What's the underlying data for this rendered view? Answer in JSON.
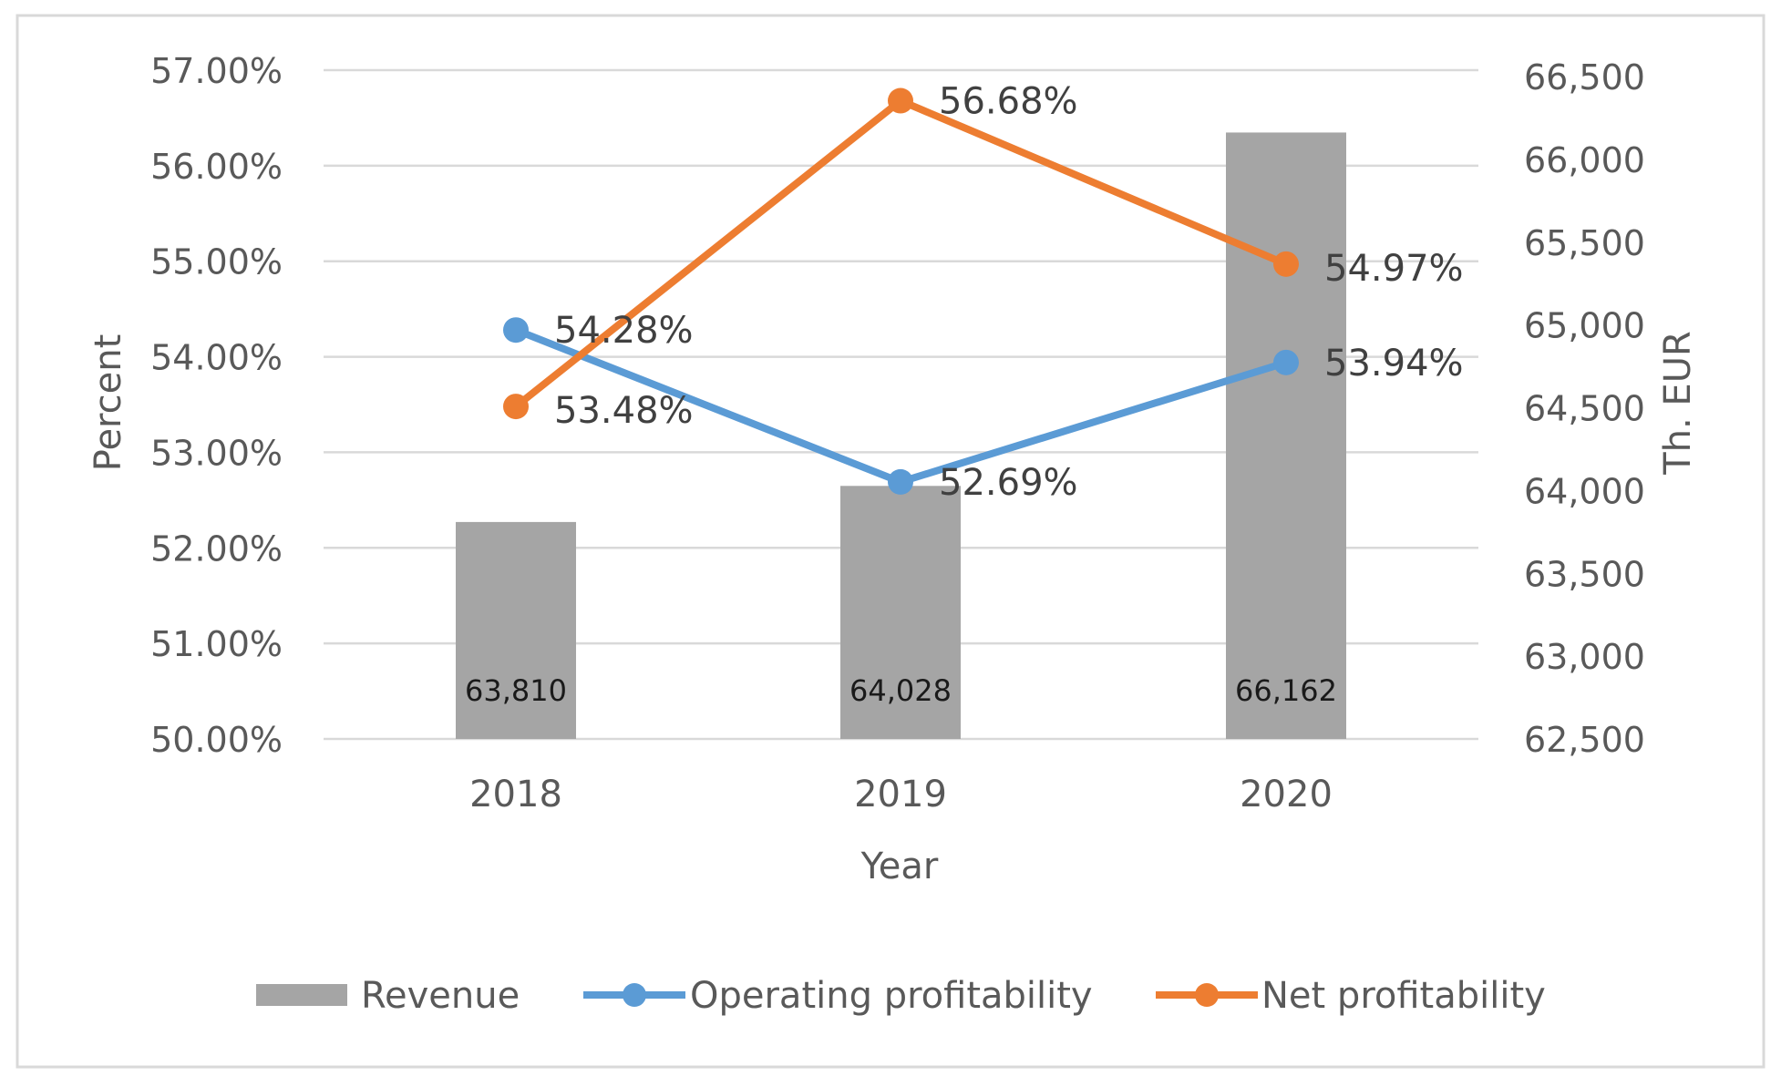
{
  "chart_data": {
    "type": "bar",
    "categories": [
      "2018",
      "2019",
      "2020"
    ],
    "xlabel": "Year",
    "ylabel_left": "Percent",
    "ylabel_right": "Th. EUR",
    "y_left": {
      "min": 0.5,
      "max": 0.57,
      "ticks": [
        {
          "value": 0.5,
          "label": "50.00%"
        },
        {
          "value": 0.51,
          "label": "51.00%"
        },
        {
          "value": 0.52,
          "label": "52.00%"
        },
        {
          "value": 0.53,
          "label": "53.00%"
        },
        {
          "value": 0.54,
          "label": "54.00%"
        },
        {
          "value": 0.55,
          "label": "55.00%"
        },
        {
          "value": 0.56,
          "label": "56.00%"
        },
        {
          "value": 0.57,
          "label": "57.00%"
        }
      ]
    },
    "y_right": {
      "min": 62500,
      "max": 66500,
      "ticks": [
        {
          "value": 62500,
          "label": "62,500"
        },
        {
          "value": 63000,
          "label": "63,000"
        },
        {
          "value": 63500,
          "label": "63,500"
        },
        {
          "value": 64000,
          "label": "64,000"
        },
        {
          "value": 64500,
          "label": "64,500"
        },
        {
          "value": 65000,
          "label": "65,000"
        },
        {
          "value": 65500,
          "label": "65,500"
        },
        {
          "value": 66000,
          "label": "66,000"
        },
        {
          "value": 66500,
          "label": "66,500"
        }
      ]
    },
    "grid": true,
    "legend_position": "bottom",
    "series": [
      {
        "name": "Revenue",
        "kind": "bar",
        "axis": "right",
        "color": "#a5a5a5",
        "values": [
          63810,
          64028,
          66162
        ],
        "labels": [
          "63,810",
          "64,028",
          "66,162"
        ]
      },
      {
        "name": "Operating profitability",
        "kind": "line",
        "axis": "left",
        "color": "#5b9bd5",
        "values": [
          0.5428,
          0.5269,
          0.5394
        ],
        "labels": [
          "54.28%",
          "52.69%",
          "53.94%"
        ]
      },
      {
        "name": "Net profitability",
        "kind": "line",
        "axis": "left",
        "color": "#ed7d31",
        "values": [
          0.5348,
          0.5668,
          0.5497
        ],
        "labels": [
          "53.48%",
          "56.68%",
          "54.97%"
        ]
      }
    ]
  }
}
